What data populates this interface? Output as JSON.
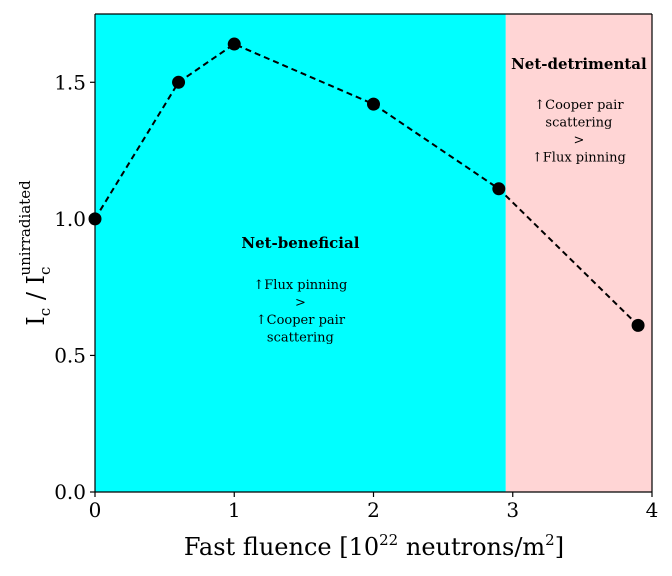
{
  "chart_data": {
    "type": "line",
    "x": [
      0,
      0.6,
      1.0,
      2.0,
      2.9,
      3.9
    ],
    "y": [
      1.0,
      1.5,
      1.64,
      1.42,
      1.11,
      0.61
    ],
    "xlim": [
      0,
      4
    ],
    "ylim": [
      0,
      1.75
    ],
    "x_ticks": [
      "0",
      "1",
      "2",
      "3",
      "4"
    ],
    "y_ticks": [
      "0.0",
      "0.5",
      "1.0",
      "1.5"
    ],
    "xlabel": "Fast fluence [10²² neutrons/m²]",
    "ylabel": "I_c / I_c^unirradiated",
    "line_style": "dashed",
    "marker": "circle",
    "grid": false,
    "regions": [
      {
        "x_range": [
          0,
          2.95
        ],
        "color": "#00ffff",
        "title": "Net-beneficial",
        "lines": [
          "↑Flux pinning",
          ">",
          "↑Cooper pair",
          "scattering"
        ]
      },
      {
        "x_range": [
          2.95,
          4
        ],
        "color": "#ffd5d5",
        "title": "Net-detrimental",
        "lines": [
          "↑Cooper pair",
          "scattering",
          ">",
          "↑Flux pinning"
        ]
      }
    ]
  }
}
